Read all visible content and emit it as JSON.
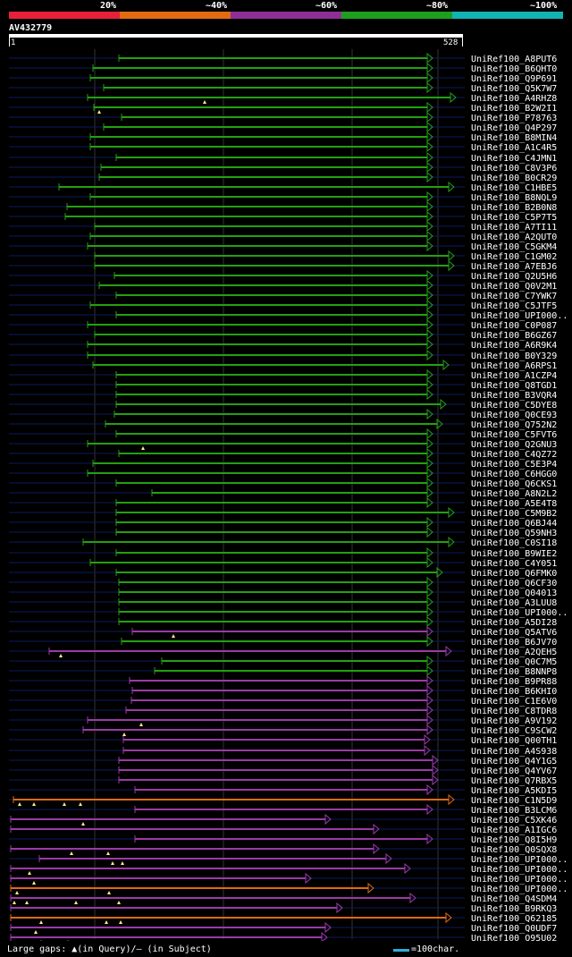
{
  "legend": [
    {
      "label": "20%",
      "color": "#e8213a"
    },
    {
      "label": "~40%",
      "color": "#e26b12"
    },
    {
      "label": "~60%",
      "color": "#8e2f97"
    },
    {
      "label": "~80%",
      "color": "#1e9e1e"
    },
    {
      "label": "~100%",
      "color": "#12b3b3"
    }
  ],
  "query": {
    "name": "AV432779",
    "start": "1",
    "end": "528"
  },
  "colors": {
    "green": "#23a012",
    "purple": "#9b3aa7",
    "orange": "#de6a12",
    "track": "#0b1a5e",
    "gap": "#ffeb88"
  },
  "hits": [
    {
      "label": "UniRef100_A8PUT6",
      "s": 133,
      "e": 484,
      "c": "green"
    },
    {
      "label": "UniRef100_B6QHT0",
      "s": 104,
      "e": 484,
      "c": "green"
    },
    {
      "label": "UniRef100_Q9P691",
      "s": 101,
      "e": 484,
      "c": "green"
    },
    {
      "label": "UniRef100_Q5K7W7",
      "s": 116,
      "e": 484,
      "c": "green"
    },
    {
      "label": "UniRef100_A4RHZ8",
      "s": 98,
      "e": 510,
      "c": "green",
      "g": [
        229
      ]
    },
    {
      "label": "UniRef100_B2W2I1",
      "s": 105,
      "e": 484,
      "c": "green",
      "g": [
        111
      ]
    },
    {
      "label": "UniRef100_P78763",
      "s": 136,
      "e": 484,
      "c": "green"
    },
    {
      "label": "UniRef100_Q4P297",
      "s": 116,
      "e": 484,
      "c": "green"
    },
    {
      "label": "UniRef100_B8MIN4",
      "s": 101,
      "e": 484,
      "c": "green"
    },
    {
      "label": "UniRef100_A1C4R5",
      "s": 101,
      "e": 484,
      "c": "green"
    },
    {
      "label": "UniRef100_C4JMN1",
      "s": 130,
      "e": 484,
      "c": "green"
    },
    {
      "label": "UniRef100_C8V3P6",
      "s": 113,
      "e": 484,
      "c": "green"
    },
    {
      "label": "UniRef100_B0CR29",
      "s": 111,
      "e": 484,
      "c": "green"
    },
    {
      "label": "UniRef100_C1HBE5",
      "s": 66,
      "e": 508,
      "c": "green"
    },
    {
      "label": "UniRef100_B8NQL9",
      "s": 101,
      "e": 484,
      "c": "green"
    },
    {
      "label": "UniRef100_B2B0N8",
      "s": 75,
      "e": 484,
      "c": "green"
    },
    {
      "label": "UniRef100_C5P7T5",
      "s": 73,
      "e": 484,
      "c": "green"
    },
    {
      "label": "UniRef100_A7TI11",
      "s": 106,
      "e": 484,
      "c": "green"
    },
    {
      "label": "UniRef100_A2QUT0",
      "s": 101,
      "e": 484,
      "c": "green"
    },
    {
      "label": "UniRef100_C5GKM4",
      "s": 98,
      "e": 484,
      "c": "green"
    },
    {
      "label": "UniRef100_C1GM02",
      "s": 106,
      "e": 508,
      "c": "green"
    },
    {
      "label": "UniRef100_A7EBJ6",
      "s": 106,
      "e": 508,
      "c": "green"
    },
    {
      "label": "UniRef100_Q2U5H6",
      "s": 128,
      "e": 484,
      "c": "green"
    },
    {
      "label": "UniRef100_Q0V2M1",
      "s": 111,
      "e": 484,
      "c": "green"
    },
    {
      "label": "UniRef100_C7YWK7",
      "s": 130,
      "e": 484,
      "c": "green"
    },
    {
      "label": "UniRef100_C5JTF5",
      "s": 101,
      "e": 484,
      "c": "green"
    },
    {
      "label": "UniRef100_UPI000..",
      "s": 130,
      "e": 484,
      "c": "green"
    },
    {
      "label": "UniRef100_C0P087",
      "s": 98,
      "e": 484,
      "c": "green"
    },
    {
      "label": "UniRef100_B6GZ67",
      "s": 106,
      "e": 484,
      "c": "green"
    },
    {
      "label": "UniRef100_A6R9K4",
      "s": 98,
      "e": 484,
      "c": "green"
    },
    {
      "label": "UniRef100_B0Y329",
      "s": 98,
      "e": 484,
      "c": "green"
    },
    {
      "label": "UniRef100_A6RPS1",
      "s": 104,
      "e": 502,
      "c": "green"
    },
    {
      "label": "UniRef100_A1CZP4",
      "s": 130,
      "e": 484,
      "c": "green"
    },
    {
      "label": "UniRef100_Q8TGD1",
      "s": 130,
      "e": 484,
      "c": "green"
    },
    {
      "label": "UniRef100_B3VQR4",
      "s": 130,
      "e": 484,
      "c": "green"
    },
    {
      "label": "UniRef100_C5DYE8",
      "s": 130,
      "e": 499,
      "c": "green"
    },
    {
      "label": "UniRef100_Q0CE93",
      "s": 128,
      "e": 484,
      "c": "green"
    },
    {
      "label": "UniRef100_Q752N2",
      "s": 118,
      "e": 495,
      "c": "green"
    },
    {
      "label": "UniRef100_C5FVT6",
      "s": 130,
      "e": 484,
      "c": "green"
    },
    {
      "label": "UniRef100_Q2GNU3",
      "s": 98,
      "e": 484,
      "c": "green",
      "g": [
        160
      ]
    },
    {
      "label": "UniRef100_C4QZ72",
      "s": 133,
      "e": 484,
      "c": "green"
    },
    {
      "label": "UniRef100_C5E3P4",
      "s": 104,
      "e": 484,
      "c": "green"
    },
    {
      "label": "UniRef100_C6HGG0",
      "s": 98,
      "e": 484,
      "c": "green"
    },
    {
      "label": "UniRef100_Q6CKS1",
      "s": 130,
      "e": 484,
      "c": "green"
    },
    {
      "label": "UniRef100_A8N2L2",
      "s": 170,
      "e": 484,
      "c": "green"
    },
    {
      "label": "UniRef100_A5E4T8",
      "s": 130,
      "e": 484,
      "c": "green"
    },
    {
      "label": "UniRef100_C5M9B2",
      "s": 130,
      "e": 508,
      "c": "green"
    },
    {
      "label": "UniRef100_Q6BJ44",
      "s": 130,
      "e": 484,
      "c": "green"
    },
    {
      "label": "UniRef100_Q59NH3",
      "s": 130,
      "e": 484,
      "c": "green"
    },
    {
      "label": "UniRef100_C0SI18",
      "s": 93,
      "e": 508,
      "c": "green"
    },
    {
      "label": "UniRef100_B9WIE2",
      "s": 130,
      "e": 484,
      "c": "green"
    },
    {
      "label": "UniRef100_C4Y051",
      "s": 101,
      "e": 484,
      "c": "green"
    },
    {
      "label": "UniRef100_Q6FMK0",
      "s": 130,
      "e": 495,
      "c": "green"
    },
    {
      "label": "UniRef100_Q6CF30",
      "s": 133,
      "e": 484,
      "c": "green"
    },
    {
      "label": "UniRef100_Q04013",
      "s": 133,
      "e": 484,
      "c": "green"
    },
    {
      "label": "UniRef100_A3LUU8",
      "s": 133,
      "e": 484,
      "c": "green"
    },
    {
      "label": "UniRef100_UPI000..",
      "s": 133,
      "e": 484,
      "c": "green"
    },
    {
      "label": "UniRef100_A5DI28",
      "s": 133,
      "e": 484,
      "c": "green"
    },
    {
      "label": "UniRef100_Q5ATV6",
      "s": 148,
      "e": 484,
      "c": "purple",
      "g": [
        194
      ]
    },
    {
      "label": "UniRef100_B6JV70",
      "s": 136,
      "e": 484,
      "c": "green"
    },
    {
      "label": "UniRef100_A2QEH5",
      "s": 55,
      "e": 505,
      "c": "purple",
      "g": [
        68
      ]
    },
    {
      "label": "UniRef100_Q0C7M5",
      "s": 181,
      "e": 484,
      "c": "green"
    },
    {
      "label": "UniRef100_B8NNP8",
      "s": 173,
      "e": 484,
      "c": "green"
    },
    {
      "label": "UniRef100_B9PR88",
      "s": 145,
      "e": 484,
      "c": "purple"
    },
    {
      "label": "UniRef100_B6KHI0",
      "s": 148,
      "e": 484,
      "c": "purple"
    },
    {
      "label": "UniRef100_C1E6V0",
      "s": 147,
      "e": 484,
      "c": "purple"
    },
    {
      "label": "UniRef100_C8TDR8",
      "s": 141,
      "e": 484,
      "c": "purple"
    },
    {
      "label": "UniRef100_A9V192",
      "s": 98,
      "e": 484,
      "c": "purple",
      "g": [
        158
      ]
    },
    {
      "label": "UniRef100_C9SCW2",
      "s": 93,
      "e": 484,
      "c": "purple",
      "g": [
        139
      ]
    },
    {
      "label": "UniRef100_Q00TH1",
      "s": 138,
      "e": 481,
      "c": "purple"
    },
    {
      "label": "UniRef100_A4S938",
      "s": 138,
      "e": 481,
      "c": "purple"
    },
    {
      "label": "UniRef100_Q4Y1G5",
      "s": 133,
      "e": 490,
      "c": "purple"
    },
    {
      "label": "UniRef100_Q4YV67",
      "s": 133,
      "e": 490,
      "c": "purple"
    },
    {
      "label": "UniRef100_Q7RBX5",
      "s": 133,
      "e": 490,
      "c": "purple"
    },
    {
      "label": "UniRef100_A5KDI5",
      "s": 151,
      "e": 484,
      "c": "purple"
    },
    {
      "label": "UniRef100_C1N5D9",
      "s": 15,
      "e": 508,
      "c": "orange",
      "g": [
        22,
        38,
        72,
        90
      ]
    },
    {
      "label": "UniRef100_B3LCM6",
      "s": 151,
      "e": 484,
      "c": "purple"
    },
    {
      "label": "UniRef100_C5XK46",
      "s": 12,
      "e": 370,
      "c": "purple",
      "g": [
        93
      ]
    },
    {
      "label": "UniRef100_A1IGC6",
      "s": 12,
      "e": 424,
      "c": "purple"
    },
    {
      "label": "UniRef100_Q8I5H9",
      "s": 151,
      "e": 484,
      "c": "purple"
    },
    {
      "label": "UniRef100_Q0SQX8",
      "s": 12,
      "e": 424,
      "c": "purple",
      "g": [
        80,
        121
      ]
    },
    {
      "label": "UniRef100_UPI000..",
      "s": 44,
      "e": 438,
      "c": "purple",
      "g": [
        126,
        137
      ]
    },
    {
      "label": "UniRef100_UPI000..",
      "s": 12,
      "e": 459,
      "c": "purple",
      "g": [
        33
      ]
    },
    {
      "label": "UniRef100_UPI000..",
      "s": 12,
      "e": 348,
      "c": "purple",
      "g": [
        38
      ]
    },
    {
      "label": "UniRef100_UPI000..",
      "s": 12,
      "e": 418,
      "c": "orange",
      "g": [
        19,
        122
      ]
    },
    {
      "label": "UniRef100_Q4SDM4",
      "s": 12,
      "e": 465,
      "c": "purple",
      "g": [
        16,
        30,
        85,
        133
      ]
    },
    {
      "label": "UniRef100_B9RKQ3",
      "s": 12,
      "e": 383,
      "c": "purple"
    },
    {
      "label": "UniRef100_Q62185",
      "s": 12,
      "e": 505,
      "c": "orange",
      "g": [
        46,
        119,
        135
      ]
    },
    {
      "label": "UniRef100_Q0UDF7",
      "s": 12,
      "e": 370,
      "c": "purple",
      "g": [
        40
      ]
    },
    {
      "label": "UniRef100_Q95U02",
      "s": 12,
      "e": 366,
      "c": "purple",
      "g": [
        46,
        76
      ]
    }
  ],
  "footer": {
    "gaps_label": "Large gaps: ▲(in Query)/– (in Subject)",
    "scale_label": "=100char."
  }
}
